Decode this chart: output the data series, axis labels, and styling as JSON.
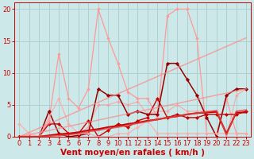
{
  "bg_color": "#cce8e8",
  "grid_color": "#aacccc",
  "xlabel": "Vent moyen/en rafales ( km/h )",
  "xlabel_color": "#cc0000",
  "xlabel_fontsize": 7.5,
  "tick_color": "#cc0000",
  "tick_fontsize": 6,
  "xlim": [
    -0.5,
    23.5
  ],
  "ylim": [
    0,
    21
  ],
  "yticks": [
    0,
    5,
    10,
    15,
    20
  ],
  "xticks": [
    0,
    1,
    2,
    3,
    4,
    5,
    6,
    7,
    8,
    9,
    10,
    11,
    12,
    13,
    14,
    15,
    16,
    17,
    18,
    19,
    20,
    21,
    22,
    23
  ],
  "lines": [
    {
      "comment": "light pink - highest peaks, rafales max line",
      "x": [
        0,
        1,
        2,
        3,
        4,
        5,
        6,
        7,
        8,
        9,
        10,
        11,
        12,
        13,
        14,
        15,
        16,
        17,
        18,
        19,
        20,
        21,
        22,
        23
      ],
      "y": [
        0,
        0,
        0,
        2.5,
        13,
        6,
        4.5,
        7.5,
        20,
        15.5,
        11.5,
        7,
        6,
        6,
        3,
        19,
        20,
        20,
        15.5,
        0.5,
        0.5,
        6,
        0.5,
        0.5
      ],
      "color": "#ff9999",
      "lw": 0.9,
      "marker": "D",
      "ms": 1.8,
      "alpha": 1.0
    },
    {
      "comment": "medium pink with diamonds - second highest",
      "x": [
        0,
        1,
        2,
        3,
        4,
        5,
        6,
        7,
        8,
        9,
        10,
        11,
        12,
        13,
        14,
        15,
        16,
        17,
        18,
        19,
        20,
        21,
        22,
        23
      ],
      "y": [
        0,
        0,
        0,
        0,
        0,
        0.5,
        0.5,
        1.5,
        5,
        5,
        5.5,
        5,
        5.5,
        3.5,
        4,
        4,
        5,
        4,
        4,
        4,
        4,
        0,
        6.5,
        7.5
      ],
      "color": "#ff9999",
      "lw": 0.9,
      "marker": "D",
      "ms": 1.8,
      "alpha": 0.7
    },
    {
      "comment": "dark red solid line with diamonds - main mean wind",
      "x": [
        0,
        1,
        2,
        3,
        4,
        5,
        6,
        7,
        8,
        9,
        10,
        11,
        12,
        13,
        14,
        15,
        16,
        17,
        18,
        19,
        20,
        21,
        22,
        23
      ],
      "y": [
        0,
        0,
        0,
        4,
        0.5,
        0,
        0.2,
        0.5,
        7.5,
        6.5,
        6.5,
        3.5,
        4,
        3.5,
        3.5,
        11.5,
        11.5,
        9,
        6.5,
        3,
        0,
        6.5,
        7.5,
        7.5
      ],
      "color": "#990000",
      "lw": 1.1,
      "marker": "D",
      "ms": 2.2,
      "alpha": 1.0
    },
    {
      "comment": "dark red line 2",
      "x": [
        0,
        1,
        2,
        3,
        4,
        5,
        6,
        7,
        8,
        9,
        10,
        11,
        12,
        13,
        14,
        15,
        16,
        17,
        18,
        19,
        20,
        21,
        22,
        23
      ],
      "y": [
        0,
        0,
        0,
        2,
        2,
        0.5,
        0.5,
        2.5,
        0,
        1,
        2,
        1.5,
        2.5,
        3,
        6,
        3,
        3.5,
        3,
        3,
        3.5,
        3.5,
        3.5,
        3.5,
        4
      ],
      "color": "#cc0000",
      "lw": 1.0,
      "marker": "D",
      "ms": 2.0,
      "alpha": 1.0
    },
    {
      "comment": "faint pink line starting at 2 going down - light series",
      "x": [
        0,
        1,
        2,
        3,
        4,
        5,
        6,
        7,
        8,
        9,
        10,
        11,
        12,
        13,
        14,
        15,
        16,
        17,
        18,
        19,
        20,
        21,
        22,
        23
      ],
      "y": [
        2,
        0.5,
        0,
        3,
        6,
        2,
        0.5,
        0.5,
        0,
        0,
        0.5,
        0.5,
        1.5,
        2.5,
        0.5,
        0.5,
        0.5,
        0.5,
        0.5,
        0.5,
        0.5,
        0.5,
        0.5,
        0.5
      ],
      "color": "#ffaaaa",
      "lw": 0.9,
      "marker": "D",
      "ms": 1.8,
      "alpha": 0.9
    },
    {
      "comment": "diagonal straight line 1 - upper",
      "x": [
        0,
        23
      ],
      "y": [
        0,
        15.5
      ],
      "color": "#ff8888",
      "lw": 1.1,
      "marker": null,
      "ms": 0,
      "alpha": 0.7
    },
    {
      "comment": "diagonal straight line 2 - lower",
      "x": [
        0,
        23
      ],
      "y": [
        0,
        7.5
      ],
      "color": "#ff8888",
      "lw": 1.1,
      "marker": null,
      "ms": 0,
      "alpha": 0.7
    },
    {
      "comment": "dark red smooth trend line (thick, no marker)",
      "x": [
        0,
        1,
        2,
        3,
        4,
        5,
        6,
        7,
        8,
        9,
        10,
        11,
        12,
        13,
        14,
        15,
        16,
        17,
        18,
        19,
        20,
        21,
        22,
        23
      ],
      "y": [
        0,
        0,
        0,
        0.2,
        0.4,
        0.5,
        0.7,
        1.0,
        1.2,
        1.5,
        1.7,
        2.0,
        2.2,
        2.5,
        2.7,
        3.0,
        3.2,
        3.5,
        3.7,
        3.8,
        3.9,
        0.5,
        3.8,
        3.8
      ],
      "color": "#cc0000",
      "lw": 1.5,
      "marker": null,
      "ms": 0,
      "alpha": 1.0
    },
    {
      "comment": "slightly lighter smooth trend line",
      "x": [
        0,
        1,
        2,
        3,
        4,
        5,
        6,
        7,
        8,
        9,
        10,
        11,
        12,
        13,
        14,
        15,
        16,
        17,
        18,
        19,
        20,
        21,
        22,
        23
      ],
      "y": [
        0,
        0,
        0,
        0.1,
        0.2,
        0.3,
        0.5,
        0.8,
        1.0,
        1.3,
        1.5,
        1.8,
        2.1,
        2.4,
        2.7,
        3.0,
        3.2,
        3.5,
        3.7,
        3.9,
        4.1,
        0.3,
        4.0,
        4.2
      ],
      "color": "#dd4444",
      "lw": 1.3,
      "marker": null,
      "ms": 0,
      "alpha": 0.8
    }
  ]
}
